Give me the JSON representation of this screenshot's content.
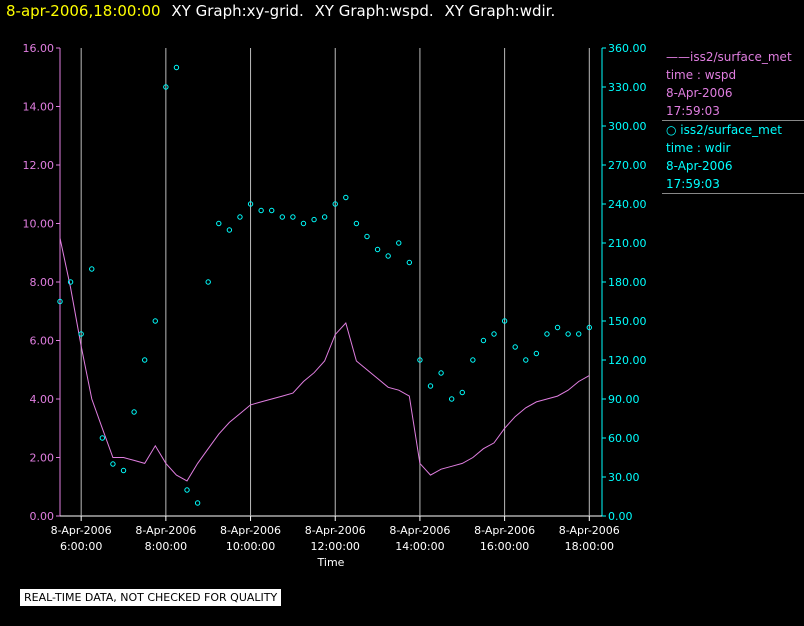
{
  "header": {
    "timestamp": "8-apr-2006,18:00:00",
    "graph_titles": [
      "XY Graph:xy-grid.",
      "XY Graph:wspd.",
      "XY Graph:wdir."
    ]
  },
  "legend": {
    "series": [
      {
        "label": "iss2/surface_met",
        "var": "time : wspd",
        "date": "8-Apr-2006",
        "time": "17:59:03"
      },
      {
        "label": "iss2/surface_met",
        "var": "time : wdir",
        "date": "8-Apr-2006",
        "time": "17:59:03"
      }
    ]
  },
  "notice": "REAL-TIME DATA, NOT CHECKED FOR QUALITY",
  "colors": {
    "wspd": "#e07ee0",
    "wdir": "#00ffff",
    "grid": "#bbbbbb",
    "background": "#000000"
  },
  "chart_data": {
    "type": "line",
    "title": "",
    "xlabel": "Time",
    "ylabel_left": "",
    "ylabel_right": "",
    "xlim": [
      5.5,
      18.3
    ],
    "ylim_left": [
      0,
      16
    ],
    "ylim_right": [
      0,
      360
    ],
    "grid": "vertical",
    "x_ticks": [
      {
        "value": 6,
        "date": "8-Apr-2006",
        "time": "6:00:00"
      },
      {
        "value": 8,
        "date": "8-Apr-2006",
        "time": "8:00:00"
      },
      {
        "value": 10,
        "date": "8-Apr-2006",
        "time": "10:00:00"
      },
      {
        "value": 12,
        "date": "8-Apr-2006",
        "time": "12:00:00"
      },
      {
        "value": 14,
        "date": "8-Apr-2006",
        "time": "14:00:00"
      },
      {
        "value": 16,
        "date": "8-Apr-2006",
        "time": "16:00:00"
      },
      {
        "value": 18,
        "date": "8-Apr-2006",
        "time": "18:00:00"
      }
    ],
    "y_left_ticks": [
      "0.00",
      "2.00",
      "4.00",
      "6.00",
      "8.00",
      "10.00",
      "12.00",
      "14.00",
      "16.00"
    ],
    "y_right_ticks": [
      "0.00",
      "30.00",
      "60.00",
      "90.00",
      "120.00",
      "150.00",
      "180.00",
      "210.00",
      "240.00",
      "270.00",
      "300.00",
      "330.00",
      "360.00"
    ],
    "series": [
      {
        "name": "wspd",
        "axis": "left",
        "style": "line",
        "x": [
          5.5,
          5.75,
          6.0,
          6.25,
          6.5,
          6.75,
          7.0,
          7.25,
          7.5,
          7.75,
          8.0,
          8.25,
          8.5,
          8.75,
          9.0,
          9.25,
          9.5,
          9.75,
          10.0,
          10.25,
          10.5,
          10.75,
          11.0,
          11.25,
          11.5,
          11.75,
          12.0,
          12.25,
          12.5,
          12.75,
          13.0,
          13.25,
          13.5,
          13.75,
          14.0,
          14.25,
          14.5,
          14.75,
          15.0,
          15.25,
          15.5,
          15.75,
          16.0,
          16.25,
          16.5,
          16.75,
          17.0,
          17.25,
          17.5,
          17.75,
          18.0
        ],
        "values": [
          9.5,
          7.8,
          5.8,
          4.0,
          3.0,
          2.0,
          2.0,
          1.9,
          1.8,
          2.4,
          1.8,
          1.4,
          1.2,
          1.8,
          2.3,
          2.8,
          3.2,
          3.5,
          3.8,
          3.9,
          4.0,
          4.1,
          4.2,
          4.6,
          4.9,
          5.3,
          6.2,
          6.6,
          5.3,
          5.0,
          4.7,
          4.4,
          4.3,
          4.1,
          1.8,
          1.4,
          1.6,
          1.7,
          1.8,
          2.0,
          2.3,
          2.5,
          3.0,
          3.4,
          3.7,
          3.9,
          4.0,
          4.1,
          4.3,
          4.6,
          4.8
        ]
      },
      {
        "name": "wdir",
        "axis": "right",
        "style": "scatter",
        "x": [
          5.5,
          5.75,
          6.0,
          6.25,
          6.5,
          6.75,
          7.0,
          7.25,
          7.5,
          7.75,
          8.0,
          8.25,
          8.5,
          8.75,
          9.0,
          9.25,
          9.5,
          9.75,
          10.0,
          10.25,
          10.5,
          10.75,
          11.0,
          11.25,
          11.5,
          11.75,
          12.0,
          12.25,
          12.5,
          12.75,
          13.0,
          13.25,
          13.5,
          13.75,
          14.0,
          14.25,
          14.5,
          14.75,
          15.0,
          15.25,
          15.5,
          15.75,
          16.0,
          16.25,
          16.5,
          16.75,
          17.0,
          17.25,
          17.5,
          17.75,
          18.0
        ],
        "values": [
          165,
          180,
          140,
          190,
          60,
          40,
          35,
          80,
          120,
          150,
          330,
          345,
          20,
          10,
          180,
          225,
          220,
          230,
          240,
          235,
          235,
          230,
          230,
          225,
          228,
          230,
          240,
          245,
          225,
          215,
          205,
          200,
          210,
          195,
          120,
          100,
          110,
          90,
          95,
          120,
          135,
          140,
          150,
          130,
          120,
          125,
          140,
          145,
          140,
          140,
          145
        ]
      }
    ]
  }
}
